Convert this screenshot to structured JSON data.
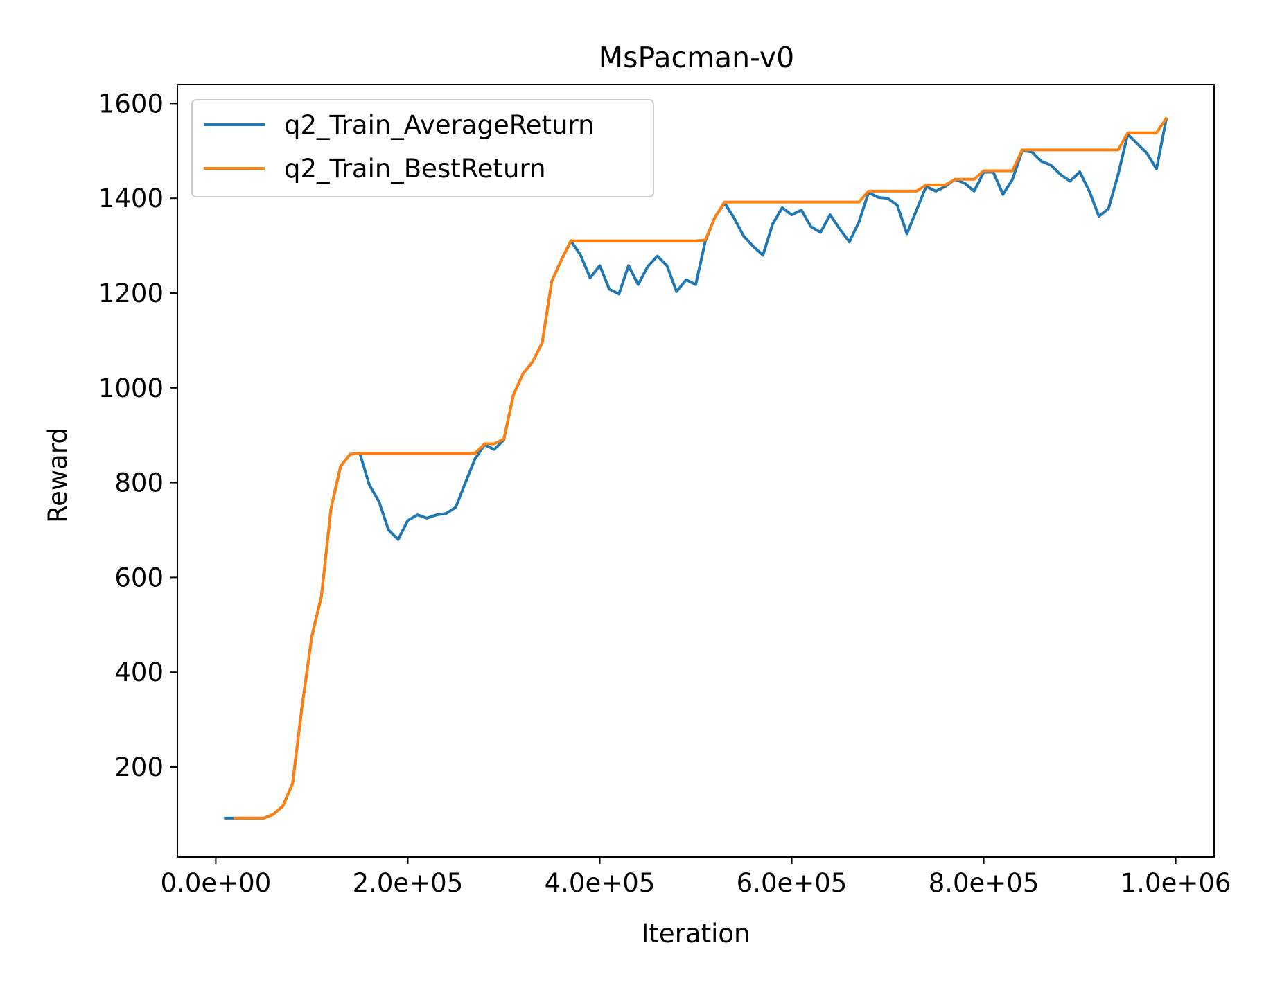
{
  "chart_data": {
    "type": "line",
    "title": "MsPacman-v0",
    "xlabel": "Iteration",
    "ylabel": "Reward",
    "xlim": [
      -40000,
      1040000
    ],
    "ylim": [
      10,
      1640
    ],
    "x_ticks": [
      0,
      200000,
      400000,
      600000,
      800000,
      1000000
    ],
    "x_tick_labels": [
      "0.0e+00",
      "2.0e+05",
      "4.0e+05",
      "6.0e+05",
      "8.0e+05",
      "1.0e+06"
    ],
    "y_ticks": [
      200,
      400,
      600,
      800,
      1000,
      1200,
      1400,
      1600
    ],
    "y_tick_labels": [
      "200",
      "400",
      "600",
      "800",
      "1000",
      "1200",
      "1400",
      "1600"
    ],
    "grid": false,
    "legend_position": "top-left",
    "x": [
      10000,
      20000,
      30000,
      40000,
      50000,
      60000,
      70000,
      80000,
      90000,
      100000,
      110000,
      120000,
      130000,
      140000,
      150000,
      160000,
      170000,
      180000,
      190000,
      200000,
      210000,
      220000,
      230000,
      240000,
      250000,
      260000,
      270000,
      280000,
      290000,
      300000,
      310000,
      320000,
      330000,
      340000,
      350000,
      360000,
      370000,
      380000,
      390000,
      400000,
      410000,
      420000,
      430000,
      440000,
      450000,
      460000,
      470000,
      480000,
      490000,
      500000,
      510000,
      520000,
      530000,
      540000,
      550000,
      560000,
      570000,
      580000,
      590000,
      600000,
      610000,
      620000,
      630000,
      640000,
      650000,
      660000,
      670000,
      680000,
      690000,
      700000,
      710000,
      720000,
      730000,
      740000,
      750000,
      760000,
      770000,
      780000,
      790000,
      800000,
      810000,
      820000,
      830000,
      840000,
      850000,
      860000,
      870000,
      880000,
      890000,
      900000,
      910000,
      920000,
      930000,
      940000,
      950000,
      960000,
      970000,
      980000,
      990000
    ],
    "series": [
      {
        "name": "q2_Train_AverageReturn",
        "color": "#1f77b4",
        "values": [
          92,
          92,
          92,
          92,
          92,
          100,
          118,
          165,
          330,
          475,
          560,
          745,
          835,
          860,
          862,
          795,
          760,
          700,
          680,
          720,
          732,
          725,
          732,
          735,
          748,
          800,
          850,
          880,
          870,
          890,
          985,
          1030,
          1055,
          1095,
          1225,
          1270,
          1310,
          1280,
          1232,
          1258,
          1208,
          1198,
          1258,
          1218,
          1256,
          1278,
          1258,
          1203,
          1228,
          1218,
          1310,
          1360,
          1390,
          1358,
          1320,
          1298,
          1280,
          1345,
          1380,
          1365,
          1375,
          1340,
          1328,
          1365,
          1335,
          1308,
          1350,
          1412,
          1402,
          1400,
          1385,
          1325,
          1375,
          1425,
          1415,
          1425,
          1440,
          1432,
          1415,
          1455,
          1455,
          1408,
          1440,
          1500,
          1498,
          1478,
          1470,
          1450,
          1436,
          1456,
          1415,
          1362,
          1378,
          1450,
          1535,
          1515,
          1495,
          1462,
          1565
        ]
      },
      {
        "name": "q2_Train_BestReturn",
        "color": "#ff7f0e",
        "values": [
          null,
          92,
          92,
          92,
          92,
          100,
          118,
          165,
          330,
          475,
          560,
          745,
          835,
          860,
          862,
          862,
          862,
          862,
          862,
          862,
          862,
          862,
          862,
          862,
          862,
          862,
          862,
          882,
          882,
          892,
          985,
          1030,
          1055,
          1095,
          1225,
          1270,
          1310,
          1310,
          1310,
          1310,
          1310,
          1310,
          1310,
          1310,
          1310,
          1310,
          1310,
          1310,
          1310,
          1310,
          1312,
          1360,
          1392,
          1392,
          1392,
          1392,
          1392,
          1392,
          1392,
          1392,
          1392,
          1392,
          1392,
          1392,
          1392,
          1392,
          1392,
          1415,
          1415,
          1415,
          1415,
          1415,
          1415,
          1428,
          1428,
          1428,
          1440,
          1440,
          1440,
          1458,
          1458,
          1458,
          1458,
          1502,
          1502,
          1502,
          1502,
          1502,
          1502,
          1502,
          1502,
          1502,
          1502,
          1502,
          1538,
          1538,
          1538,
          1538,
          1568
        ]
      }
    ]
  }
}
